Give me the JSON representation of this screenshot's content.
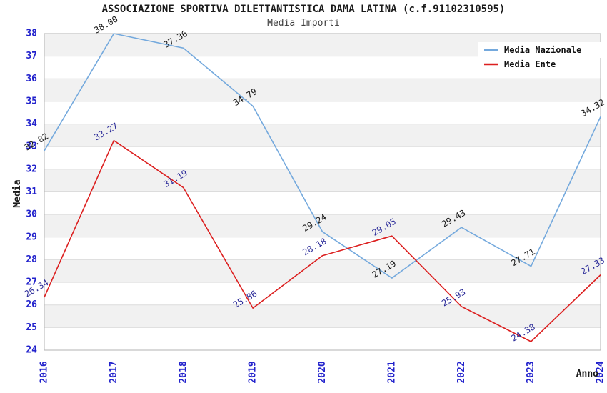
{
  "header": {
    "title": "ASSOCIAZIONE SPORTIVA DILETTANTISTICA DAMA LATINA (c.f.91102310595)",
    "subtitle": "Media Importi"
  },
  "chart_data": {
    "type": "line",
    "x": [
      2016,
      2017,
      2018,
      2019,
      2020,
      2021,
      2022,
      2023,
      2024
    ],
    "xlabel": "Anno",
    "ylabel": "Media",
    "ylim": [
      24,
      38
    ],
    "ytick_step": 1,
    "grid": "horizontal-bands-alternating",
    "legend_position": "top-right",
    "series": [
      {
        "name": "Media Nazionale",
        "color": "#74a9dd",
        "label_color": "#1a1a1a",
        "values": [
          32.82,
          38.0,
          37.36,
          34.79,
          29.24,
          27.19,
          29.43,
          27.71,
          34.32
        ],
        "labels": [
          "32.82",
          "38.00",
          "37.36",
          "34.79",
          "29.24",
          "27.19",
          "29.43",
          "27.71",
          "34.32"
        ]
      },
      {
        "name": "Media Ente",
        "color": "#dc1f1f",
        "label_color": "#2b2b99",
        "values": [
          26.34,
          33.27,
          31.19,
          25.86,
          28.18,
          29.05,
          25.93,
          24.38,
          27.33
        ],
        "labels": [
          "26.34",
          "33.27",
          "31.19",
          "25.86",
          "28.18",
          "29.05",
          "25.93",
          "24.38",
          "27.33"
        ]
      }
    ],
    "colors": {
      "tick": "#2222cc",
      "axis_title": "#1a1a1a",
      "band": "#f1f1f1",
      "grid": "#dcdcdc",
      "border": "#b3b3b3",
      "background": "#ffffff",
      "legend_bg": "#ffffff"
    }
  }
}
